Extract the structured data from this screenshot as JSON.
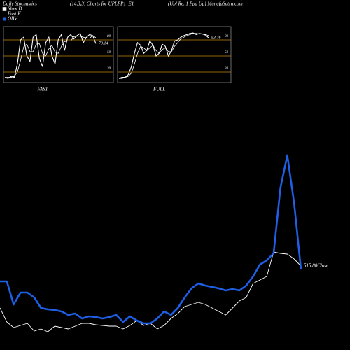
{
  "header": {
    "left": "Daily Stochastics",
    "middle": "(14,3,3) Charts for UPLPP1_E1",
    "right": "(Upl Re. 1 Ppd Up) MunafaSutra.com"
  },
  "legend": [
    {
      "name": "Slow D",
      "color": "#ffffff"
    },
    {
      "name": "Fast K",
      "color": "#000000"
    },
    {
      "name": "OBV",
      "color": "#1e5fe6"
    }
  ],
  "chart_data": [
    {
      "type": "line",
      "xlabel": "FAST",
      "annotation": "73.14",
      "ylim": [
        0,
        100
      ],
      "yticks": [
        20,
        50,
        80
      ],
      "grid_color": "#c8860a",
      "series": [
        {
          "name": "Fast K",
          "color": "#ffffff",
          "values": [
            10,
            8,
            12,
            10,
            35,
            80,
            85,
            50,
            40,
            85,
            90,
            45,
            30,
            75,
            85,
            50,
            35,
            80,
            90,
            60,
            85,
            90,
            82,
            88,
            92,
            75,
            85,
            90,
            88,
            73.14
          ]
        },
        {
          "name": "Slow D",
          "color": "#ffffff",
          "values": [
            10,
            10,
            10,
            12,
            20,
            42,
            67,
            72,
            58,
            58,
            72,
            73,
            55,
            50,
            63,
            70,
            57,
            55,
            68,
            77,
            78,
            78,
            86,
            87,
            87,
            85,
            84,
            83,
            88,
            84
          ]
        }
      ]
    },
    {
      "type": "line",
      "xlabel": "FULL",
      "annotation": "83.76",
      "ylim": [
        0,
        100
      ],
      "yticks": [
        20,
        50,
        80
      ],
      "grid_color": "#c8860a",
      "series": [
        {
          "name": "Fast K",
          "color": "#ffffff",
          "values": [
            8,
            10,
            10,
            15,
            30,
            55,
            75,
            70,
            55,
            60,
            78,
            70,
            50,
            55,
            72,
            68,
            50,
            60,
            78,
            80,
            85,
            88,
            90,
            92,
            93,
            90,
            92,
            91,
            89,
            83.76
          ]
        },
        {
          "name": "Slow D",
          "color": "#ffffff",
          "values": [
            8,
            8,
            10,
            12,
            18,
            35,
            55,
            68,
            65,
            60,
            65,
            70,
            60,
            55,
            62,
            65,
            58,
            58,
            68,
            75,
            82,
            85,
            88,
            90,
            92,
            92,
            91,
            91,
            90,
            88
          ]
        }
      ]
    },
    {
      "type": "line",
      "annotation": "515.80Close",
      "ylim": [
        395.8,
        675.8
      ],
      "y2lim": [
        0,
        280
      ],
      "series": [
        {
          "name": "Close",
          "color": "#ffffff",
          "values": [
            455.8,
            435.8,
            427.8,
            430.8,
            433.8,
            422.8,
            425.8,
            421.8,
            429.8,
            427.8,
            425.8,
            429.8,
            433.8,
            433.8,
            431.8,
            430.8,
            429.8,
            429.8,
            425.8,
            430.8,
            437.8,
            430.8,
            433.8,
            425.8,
            430.8,
            440.8,
            447.8,
            457.8,
            460.8,
            463.8,
            460.8,
            455.8,
            450.8,
            445.8,
            455.8,
            465.8,
            470.8,
            490.8,
            495.8,
            500.8,
            535.8,
            533.8,
            532.8,
            525.8,
            515.8
          ]
        },
        {
          "name": "OBV",
          "color": "#1e5fe6",
          "axis": "y2",
          "values": [
            98,
            98,
            65,
            82,
            82,
            75,
            60,
            58,
            57,
            55,
            50,
            52,
            45,
            48,
            47,
            45,
            47,
            50,
            40,
            48,
            42,
            38,
            38,
            45,
            55,
            50,
            60,
            75,
            88,
            95,
            92,
            90,
            88,
            85,
            87,
            85,
            92,
            105,
            122,
            128,
            138,
            232,
            278,
            210,
            115
          ]
        }
      ]
    }
  ]
}
